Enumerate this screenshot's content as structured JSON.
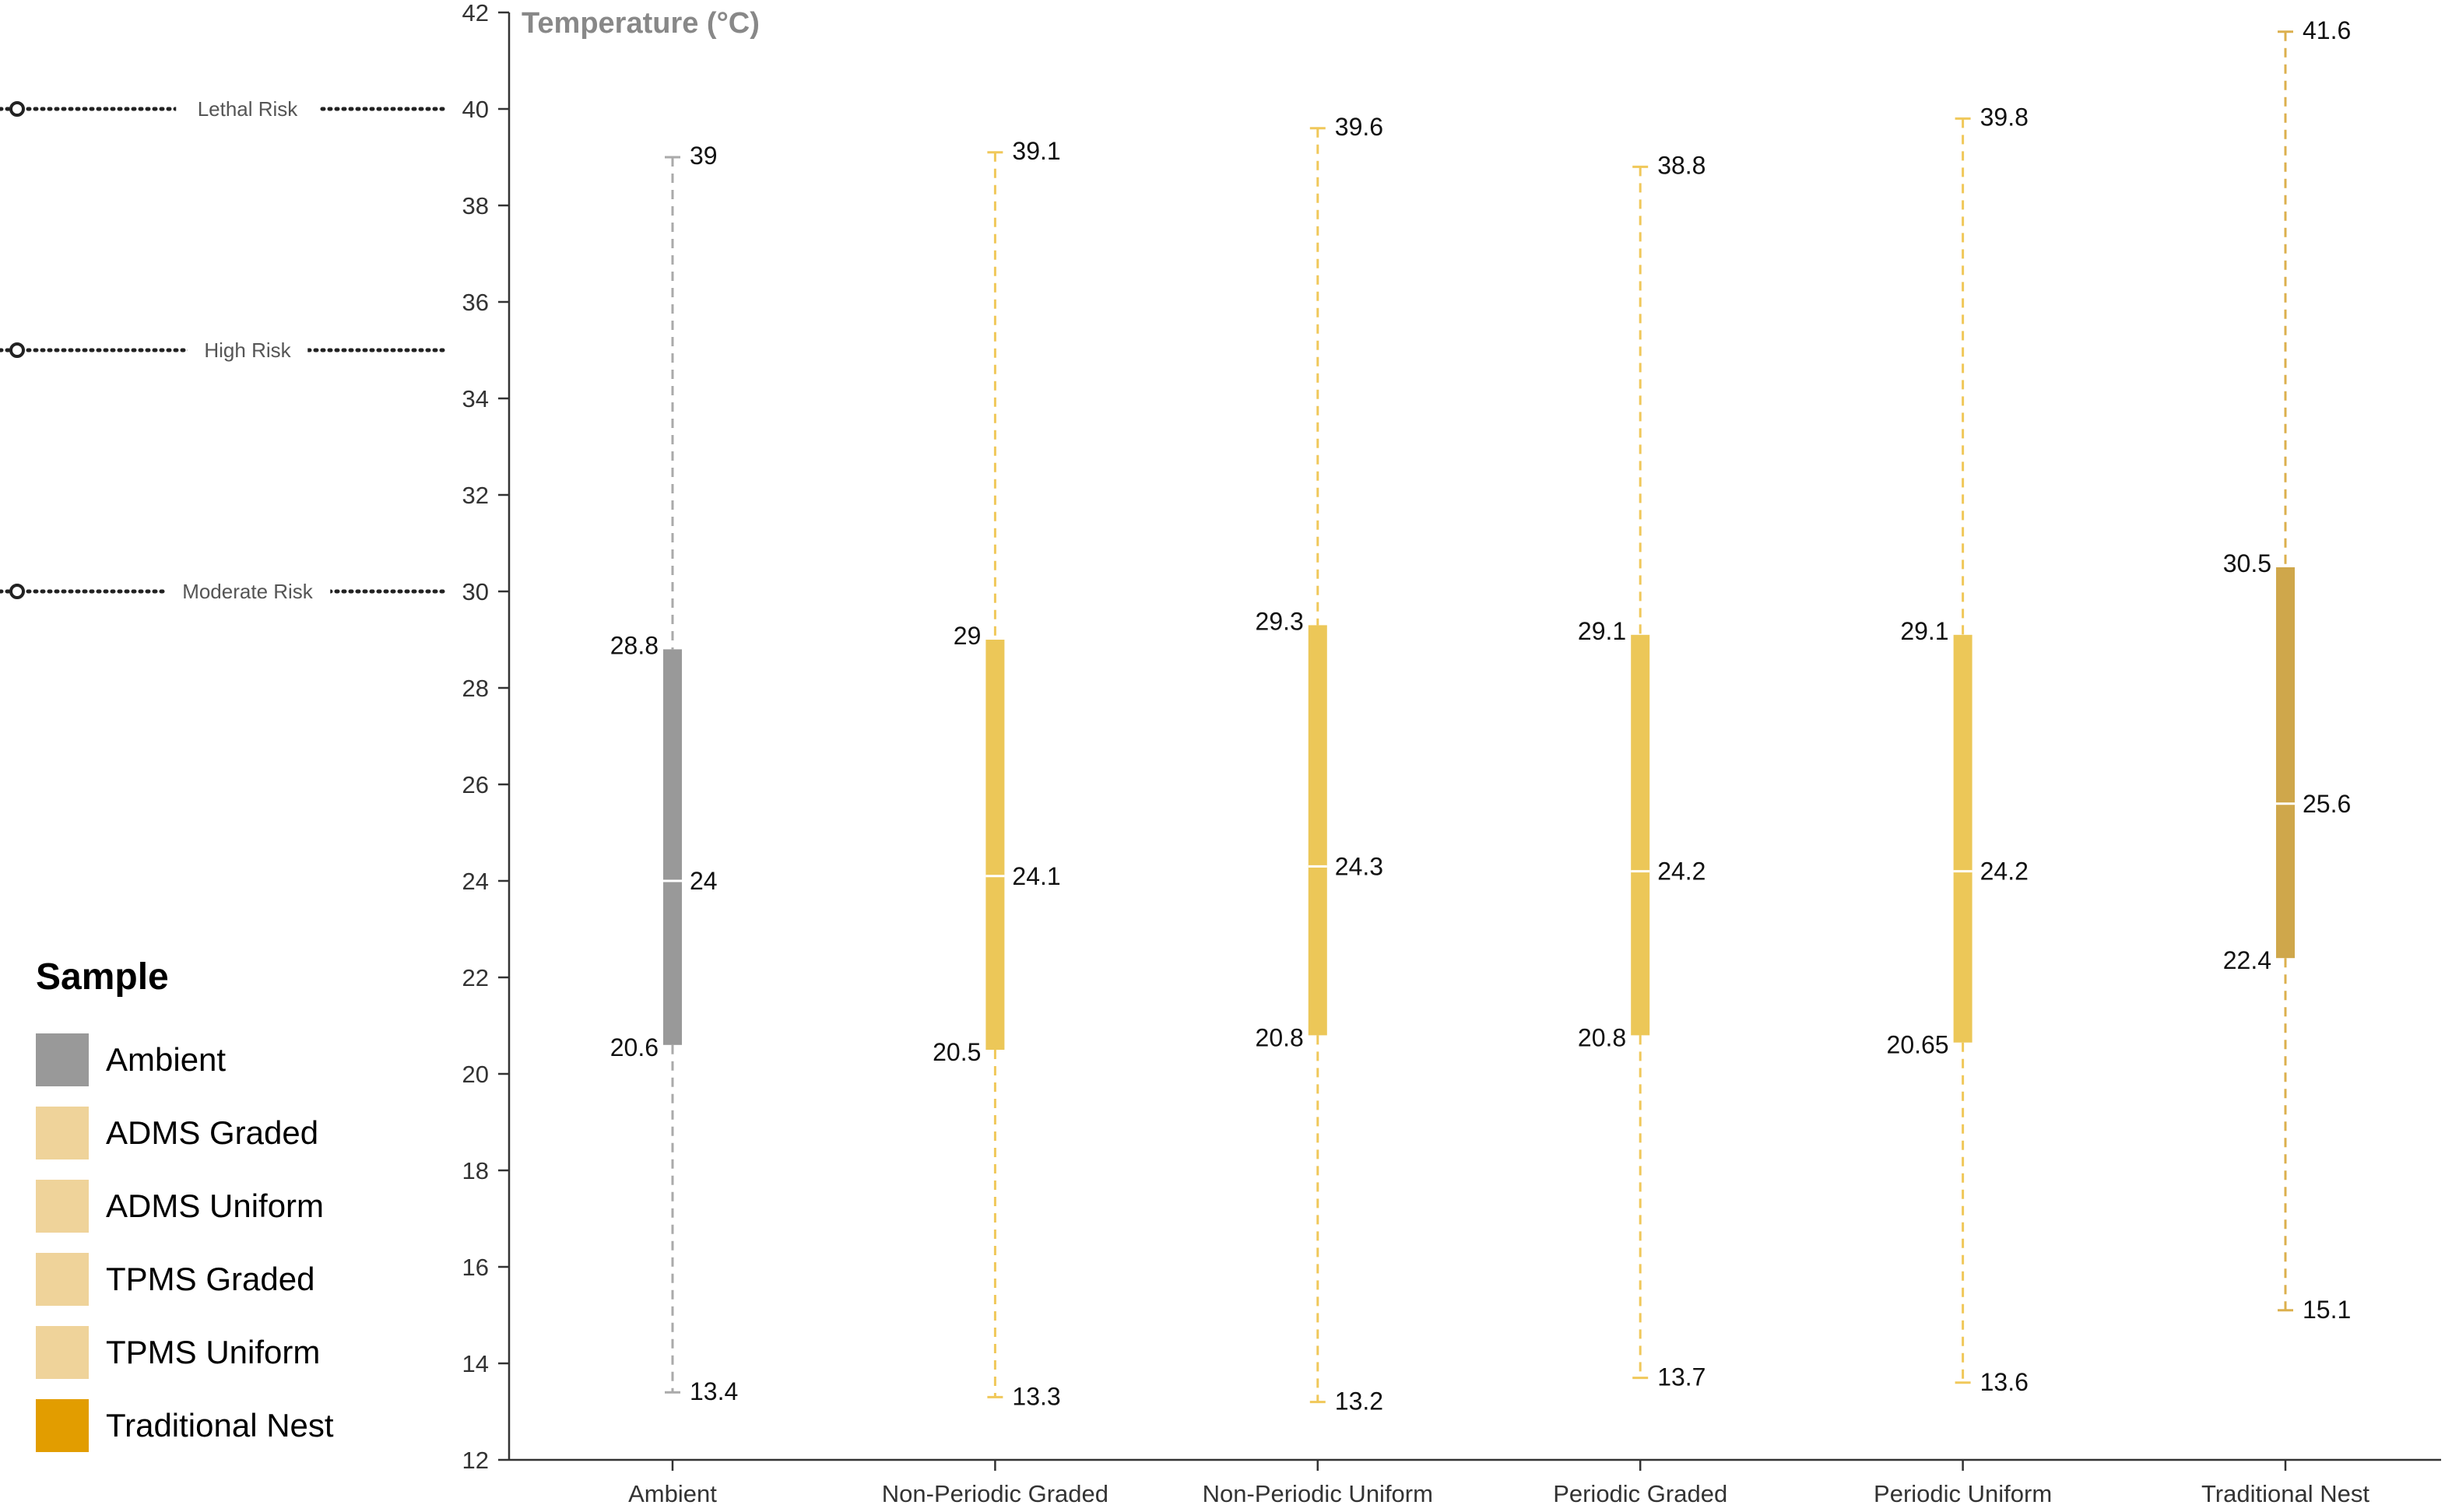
{
  "chart_data": {
    "type": "box",
    "ylabel": "Temperature (°C)",
    "ylim": [
      12,
      42
    ],
    "yticks": [
      12,
      14,
      16,
      18,
      20,
      22,
      24,
      26,
      28,
      30,
      32,
      34,
      36,
      38,
      40,
      42
    ],
    "categories": [
      "Ambient",
      "Non-Periodic Graded",
      "Non-Periodic Uniform",
      "Periodic Graded",
      "Periodic Uniform",
      "Traditional Nest"
    ],
    "boxes": [
      {
        "category": "Ambient",
        "min": 13.4,
        "q1": 20.6,
        "median": 24,
        "q3": 28.8,
        "max": 39,
        "labels": {
          "min": "13.4",
          "q1": "20.6",
          "median": "24",
          "q3": "28.8",
          "max": "39"
        },
        "color": "#999999",
        "whisker_color": "#aaaaaa"
      },
      {
        "category": "Non-Periodic Graded",
        "min": 13.3,
        "q1": 20.5,
        "median": 24.1,
        "q3": 29,
        "max": 39.1,
        "labels": {
          "min": "13.3",
          "q1": "20.5",
          "median": "24.1",
          "q3": "29",
          "max": "39.1"
        },
        "color": "#ecc758",
        "whisker_color": "#f0c85a"
      },
      {
        "category": "Non-Periodic Uniform",
        "min": 13.2,
        "q1": 20.8,
        "median": 24.3,
        "q3": 29.3,
        "max": 39.6,
        "labels": {
          "min": "13.2",
          "q1": "20.8",
          "median": "24.3",
          "q3": "29.3",
          "max": "39.6"
        },
        "color": "#ecc758",
        "whisker_color": "#f0c85a"
      },
      {
        "category": "Periodic Graded",
        "min": 13.7,
        "q1": 20.8,
        "median": 24.2,
        "q3": 29.1,
        "max": 38.8,
        "labels": {
          "min": "13.7",
          "q1": "20.8",
          "median": "24.2",
          "q3": "29.1",
          "max": "38.8"
        },
        "color": "#ecc758",
        "whisker_color": "#f0c85a"
      },
      {
        "category": "Periodic Uniform",
        "min": 13.6,
        "q1": 20.65,
        "median": 24.2,
        "q3": 29.1,
        "max": 39.8,
        "labels": {
          "min": "13.6",
          "q1": "20.65",
          "median": "24.2",
          "q3": "29.1",
          "max": "39.8"
        },
        "color": "#ecc758",
        "whisker_color": "#f0c85a"
      },
      {
        "category": "Traditional Nest",
        "min": 15.1,
        "q1": 22.4,
        "median": 25.6,
        "q3": 30.5,
        "max": 41.6,
        "labels": {
          "min": "15.1",
          "q1": "22.4",
          "median": "25.6",
          "q3": "30.5",
          "max": "41.6"
        },
        "color": "#cfa74b",
        "whisker_color": "#dcb04e"
      }
    ],
    "reference_lines": [
      {
        "label": "Lethal Risk",
        "value": 40
      },
      {
        "label": "High Risk",
        "value": 35
      },
      {
        "label": "Moderate Risk",
        "value": 30
      }
    ],
    "grid": false,
    "legend_position": "bottom-left"
  },
  "legend": {
    "title": "Sample",
    "items": [
      {
        "label": "Ambient",
        "color": "#999999"
      },
      {
        "label": "ADMS Graded",
        "color": "#efd39a"
      },
      {
        "label": "ADMS Uniform",
        "color": "#efd39a"
      },
      {
        "label": "TPMS Graded",
        "color": "#efd39a"
      },
      {
        "label": "TPMS Uniform",
        "color": "#efd39a"
      },
      {
        "label": "Traditional Nest",
        "color": "#e29d00"
      }
    ]
  }
}
